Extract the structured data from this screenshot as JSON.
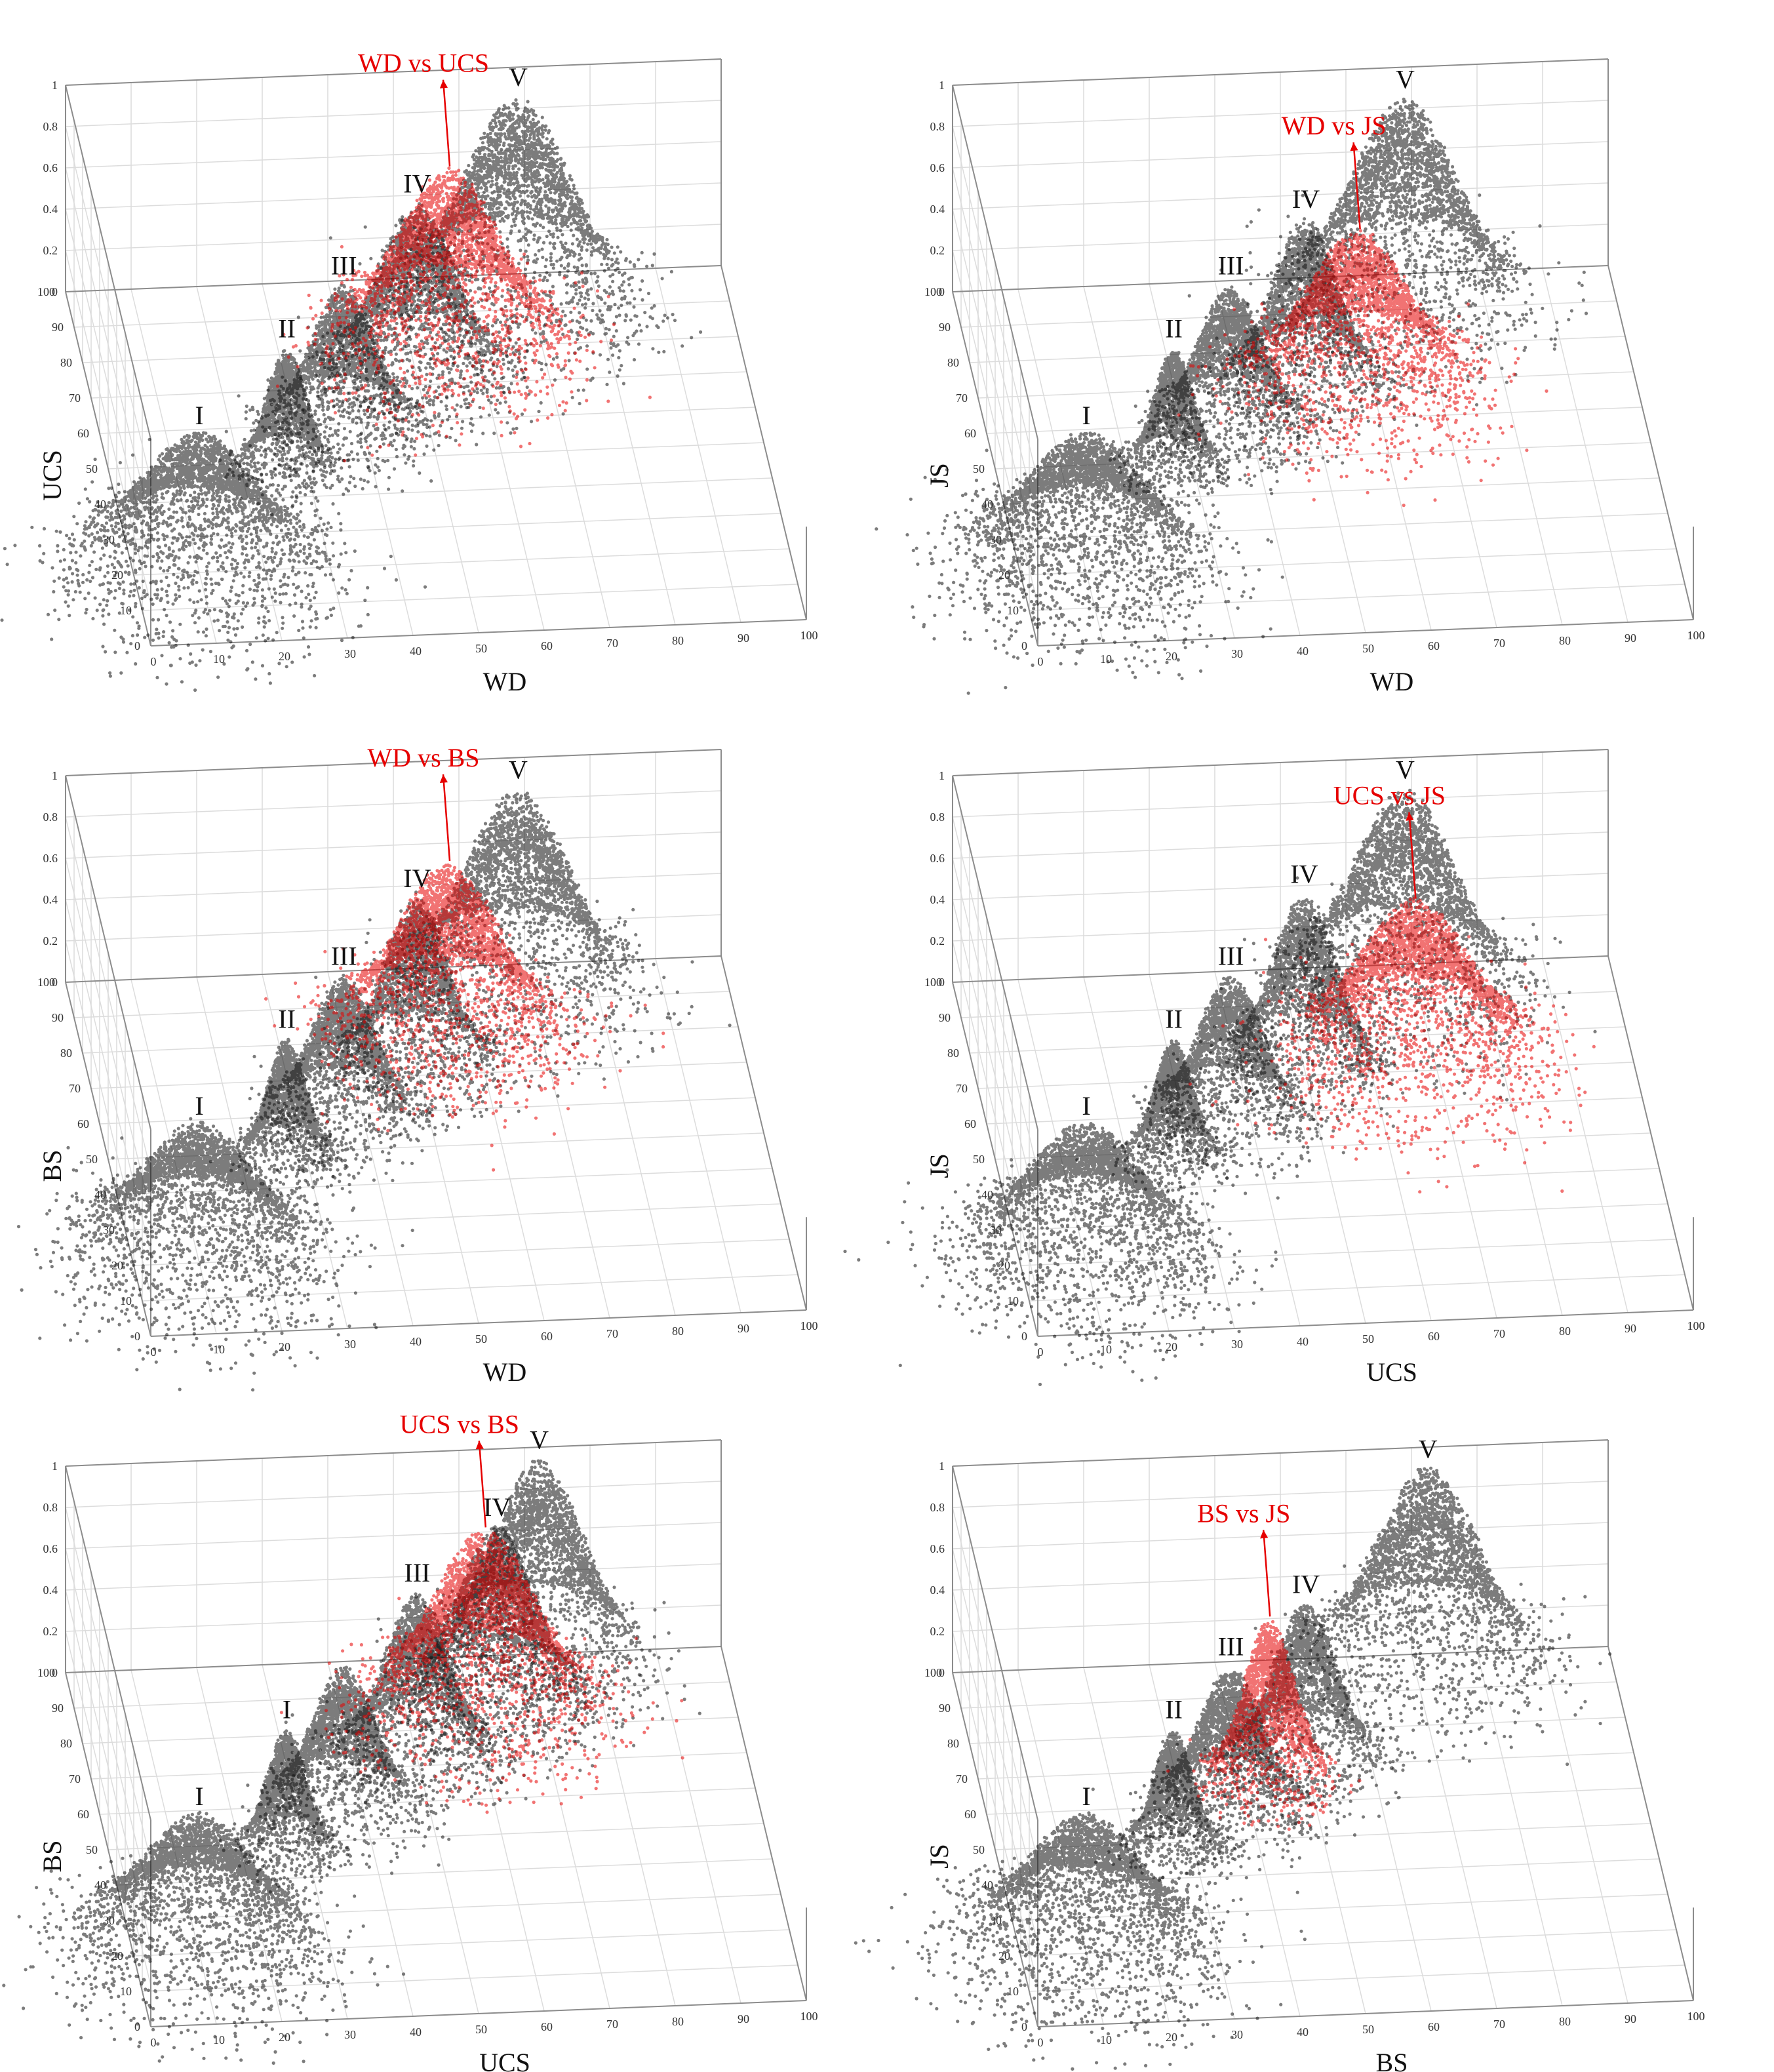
{
  "figure": {
    "colors": {
      "cluster": "#111111",
      "highlight": "#e60000",
      "axis": "#8c8c8c",
      "grid": "#dcdcdc"
    }
  },
  "chart_data": [
    {
      "type": "scatter",
      "xlabel": "WD",
      "ylabel": "UCS",
      "pair_label": "WD vs UCS",
      "x_ticks": [
        0,
        10,
        20,
        30,
        40,
        50,
        60,
        70,
        80,
        90,
        100
      ],
      "y_ticks": [
        0,
        10,
        20,
        30,
        40,
        50,
        60,
        70,
        80,
        90,
        100
      ],
      "z_ticks": [
        0,
        0.2,
        0.4,
        0.6,
        0.8,
        1
      ],
      "xlim": [
        0,
        100
      ],
      "ylim": [
        0,
        100
      ],
      "zlim": [
        0,
        1
      ],
      "grid": true,
      "series": [
        {
          "name": "I",
          "x": 10,
          "y": 20,
          "peak": 0.66,
          "spread": 9
        },
        {
          "name": "II",
          "x": 27,
          "y": 48,
          "peak": 0.58,
          "spread": 3
        },
        {
          "name": "III",
          "x": 37,
          "y": 58,
          "peak": 0.7,
          "spread": 5
        },
        {
          "name": "IV",
          "x": 50,
          "y": 72,
          "peak": 0.84,
          "spread": 6
        },
        {
          "name": "V",
          "x": 68,
          "y": 92,
          "peak": 0.99,
          "spread": 8
        }
      ],
      "highlight": {
        "x": 56,
        "y": 80,
        "peak": 0.86,
        "spread": 8
      }
    },
    {
      "type": "scatter",
      "xlabel": "WD",
      "ylabel": "JS",
      "pair_label": "WD vs JS",
      "x_ticks": [
        0,
        10,
        20,
        30,
        40,
        50,
        60,
        70,
        80,
        90,
        100
      ],
      "y_ticks": [
        0,
        10,
        20,
        30,
        40,
        50,
        60,
        70,
        80,
        90,
        100
      ],
      "z_ticks": [
        0,
        0.2,
        0.4,
        0.6,
        0.8,
        1
      ],
      "xlim": [
        0,
        100
      ],
      "ylim": [
        0,
        100
      ],
      "zlim": [
        0,
        1
      ],
      "grid": true,
      "series": [
        {
          "name": "I",
          "x": 10,
          "y": 20,
          "peak": 0.66,
          "spread": 9
        },
        {
          "name": "II",
          "x": 27,
          "y": 48,
          "peak": 0.58,
          "spread": 3
        },
        {
          "name": "III",
          "x": 37,
          "y": 58,
          "peak": 0.7,
          "spread": 5
        },
        {
          "name": "IV",
          "x": 50,
          "y": 70,
          "peak": 0.8,
          "spread": 5
        },
        {
          "name": "V",
          "x": 68,
          "y": 92,
          "peak": 0.98,
          "spread": 8
        }
      ],
      "highlight": {
        "x": 58,
        "y": 68,
        "peak": 0.76,
        "spread": 8
      }
    },
    {
      "type": "scatter",
      "xlabel": "WD",
      "ylabel": "BS",
      "pair_label": "WD vs BS",
      "x_ticks": [
        0,
        10,
        20,
        30,
        40,
        50,
        60,
        70,
        80,
        90,
        100
      ],
      "y_ticks": [
        0,
        10,
        20,
        30,
        40,
        50,
        60,
        70,
        80,
        90,
        100
      ],
      "z_ticks": [
        0,
        0.2,
        0.4,
        0.6,
        0.8,
        1
      ],
      "xlim": [
        0,
        100
      ],
      "ylim": [
        0,
        100
      ],
      "zlim": [
        0,
        1
      ],
      "grid": true,
      "series": [
        {
          "name": "I",
          "x": 10,
          "y": 20,
          "peak": 0.66,
          "spread": 9
        },
        {
          "name": "II",
          "x": 27,
          "y": 48,
          "peak": 0.58,
          "spread": 3
        },
        {
          "name": "III",
          "x": 37,
          "y": 58,
          "peak": 0.7,
          "spread": 5
        },
        {
          "name": "IV",
          "x": 50,
          "y": 72,
          "peak": 0.82,
          "spread": 5
        },
        {
          "name": "V",
          "x": 68,
          "y": 92,
          "peak": 0.98,
          "spread": 8
        }
      ],
      "highlight": {
        "x": 56,
        "y": 80,
        "peak": 0.84,
        "spread": 8
      }
    },
    {
      "type": "scatter",
      "xlabel": "UCS",
      "ylabel": "JS",
      "pair_label": "UCS vs JS",
      "x_ticks": [
        0,
        10,
        20,
        30,
        40,
        50,
        60,
        70,
        80,
        90,
        100
      ],
      "y_ticks": [
        0,
        10,
        20,
        30,
        40,
        50,
        60,
        70,
        80,
        90,
        100
      ],
      "z_ticks": [
        0,
        0.2,
        0.4,
        0.6,
        0.8,
        1
      ],
      "xlim": [
        0,
        100
      ],
      "ylim": [
        0,
        100
      ],
      "zlim": [
        0,
        1
      ],
      "grid": true,
      "series": [
        {
          "name": "I",
          "x": 10,
          "y": 20,
          "peak": 0.66,
          "spread": 9
        },
        {
          "name": "II",
          "x": 27,
          "y": 48,
          "peak": 0.58,
          "spread": 3
        },
        {
          "name": "III",
          "x": 37,
          "y": 58,
          "peak": 0.7,
          "spread": 5
        },
        {
          "name": "IV",
          "x": 50,
          "y": 72,
          "peak": 0.84,
          "spread": 5
        },
        {
          "name": "V",
          "x": 68,
          "y": 92,
          "peak": 0.98,
          "spread": 8
        }
      ],
      "highlight": {
        "x": 67,
        "y": 72,
        "peak": 0.78,
        "spread": 9
      }
    },
    {
      "type": "scatter",
      "xlabel": "UCS",
      "ylabel": "BS",
      "pair_label": "UCS vs BS",
      "x_ticks": [
        0,
        10,
        20,
        30,
        40,
        50,
        60,
        70,
        80,
        90,
        100
      ],
      "y_ticks": [
        0,
        10,
        20,
        30,
        40,
        50,
        60,
        70,
        80,
        90,
        100
      ],
      "z_ticks": [
        0,
        0.2,
        0.4,
        0.6,
        0.8,
        1
      ],
      "xlim": [
        0,
        100
      ],
      "ylim": [
        0,
        100
      ],
      "zlim": [
        0,
        1
      ],
      "grid": true,
      "series": [
        {
          "name": "I",
          "x": 10,
          "y": 20,
          "peak": 0.66,
          "spread": 9
        },
        {
          "name": "I",
          "x": 27,
          "y": 48,
          "peak": 0.58,
          "spread": 3
        },
        {
          "name": "",
          "x": 37,
          "y": 58,
          "peak": 0.7,
          "spread": 5
        },
        {
          "name": "III",
          "x": 50,
          "y": 72,
          "peak": 0.8,
          "spread": 5
        },
        {
          "name": "IV",
          "x": 64,
          "y": 86,
          "peak": 0.86,
          "spread": 6
        },
        {
          "name": "V",
          "x": 72,
          "y": 98,
          "peak": 0.97,
          "spread": 7
        }
      ],
      "highlight": {
        "x": 62,
        "y": 84,
        "peak": 0.88,
        "spread": 8
      }
    },
    {
      "type": "scatter",
      "xlabel": "BS",
      "ylabel": "JS",
      "pair_label": "BS vs JS",
      "x_ticks": [
        0,
        10,
        20,
        30,
        40,
        50,
        60,
        70,
        80,
        90,
        100
      ],
      "y_ticks": [
        0,
        10,
        20,
        30,
        40,
        50,
        60,
        70,
        80,
        90,
        100
      ],
      "z_ticks": [
        0,
        0.2,
        0.4,
        0.6,
        0.8,
        1
      ],
      "xlim": [
        0,
        100
      ],
      "ylim": [
        0,
        100
      ],
      "zlim": [
        0,
        1
      ],
      "grid": true,
      "series": [
        {
          "name": "I",
          "x": 10,
          "y": 20,
          "peak": 0.66,
          "spread": 9
        },
        {
          "name": "II",
          "x": 27,
          "y": 48,
          "peak": 0.58,
          "spread": 3
        },
        {
          "name": "III",
          "x": 37,
          "y": 58,
          "peak": 0.7,
          "spread": 5
        },
        {
          "name": "IV",
          "x": 50,
          "y": 70,
          "peak": 0.78,
          "spread": 5
        },
        {
          "name": "V",
          "x": 72,
          "y": 96,
          "peak": 0.96,
          "spread": 8
        }
      ],
      "highlight": {
        "x": 44,
        "y": 66,
        "peak": 0.78,
        "spread": 4
      }
    }
  ]
}
